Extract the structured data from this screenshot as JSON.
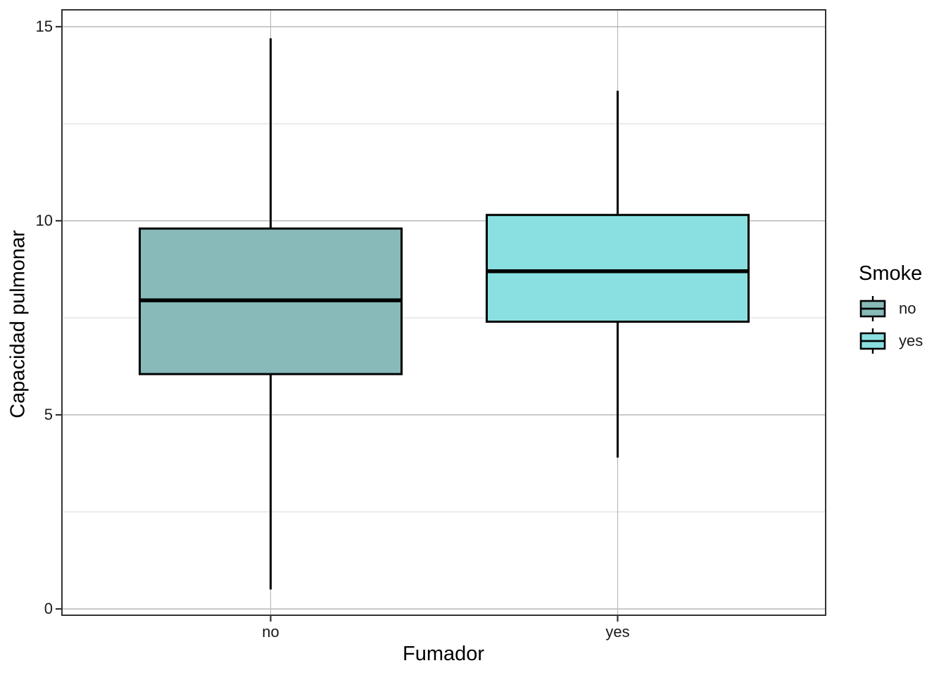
{
  "chart_data": {
    "type": "boxplot",
    "title": "",
    "xlabel": "Fumador",
    "ylabel": "Capacidad pulmonar",
    "categories": [
      "no",
      "yes"
    ],
    "y_ticks": [
      0,
      5,
      10,
      15
    ],
    "y_minor_ticks": [
      2.5,
      7.5,
      12.5
    ],
    "ylim": [
      0,
      15
    ],
    "grid": {
      "major": true,
      "minor": true
    },
    "legend": {
      "position": "right",
      "title": "Smoke",
      "entries": [
        {
          "label": "no",
          "color": "#87BAB9"
        },
        {
          "label": "yes",
          "color": "#8AE0E0"
        }
      ]
    },
    "series": [
      {
        "category": "no",
        "fill": "#87BAB9",
        "whisker_low": 0.5,
        "q1": 6.05,
        "median": 7.95,
        "q3": 9.8,
        "whisker_high": 14.7,
        "outliers": []
      },
      {
        "category": "yes",
        "fill": "#8AE0E0",
        "whisker_low": 3.9,
        "q1": 7.4,
        "median": 8.7,
        "q3": 10.15,
        "whisker_high": 13.35,
        "outliers": []
      }
    ],
    "colors": {
      "panel_border": "#333333",
      "grid_major": "#b9b9b9",
      "grid_minor": "#dfdfdf",
      "box_stroke": "#000000",
      "tick_mark": "#333333",
      "background": "#ffffff"
    }
  }
}
